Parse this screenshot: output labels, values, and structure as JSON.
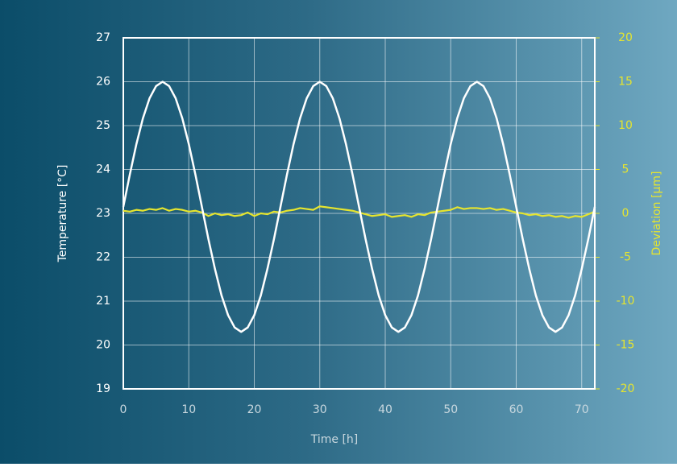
{
  "chart_data": {
    "type": "line",
    "x_label": "Time [h]",
    "y_label": "Temperature [°C]",
    "y2_label": "Deviation [µm]",
    "x": [
      0,
      1,
      2,
      3,
      4,
      5,
      6,
      7,
      8,
      9,
      10,
      11,
      12,
      13,
      14,
      15,
      16,
      17,
      18,
      19,
      20,
      21,
      22,
      23,
      24,
      25,
      26,
      27,
      28,
      29,
      30,
      31,
      32,
      33,
      34,
      35,
      36,
      37,
      38,
      39,
      40,
      41,
      42,
      43,
      44,
      45,
      46,
      47,
      48,
      49,
      50,
      51,
      52,
      53,
      54,
      55,
      56,
      57,
      58,
      59,
      60,
      61,
      62,
      63,
      64,
      65,
      66,
      67,
      68,
      69,
      70,
      71,
      72
    ],
    "series": [
      {
        "name": "Temperature",
        "color": "#ffffff",
        "values": [
          23.15,
          23.89,
          24.58,
          25.17,
          25.62,
          25.9,
          26.0,
          25.9,
          25.62,
          25.17,
          24.58,
          23.89,
          23.15,
          22.41,
          21.73,
          21.13,
          20.68,
          20.4,
          20.3,
          20.4,
          20.68,
          21.13,
          21.73,
          22.41,
          23.15,
          23.89,
          24.58,
          25.17,
          25.62,
          25.9,
          26.0,
          25.9,
          25.62,
          25.17,
          24.58,
          23.89,
          23.15,
          22.41,
          21.73,
          21.13,
          20.68,
          20.4,
          20.3,
          20.4,
          20.68,
          21.13,
          21.73,
          22.41,
          23.15,
          23.89,
          24.58,
          25.17,
          25.62,
          25.9,
          26.0,
          25.9,
          25.62,
          25.17,
          24.58,
          23.89,
          23.15,
          22.41,
          21.73,
          21.13,
          20.68,
          20.4,
          20.3,
          20.4,
          20.68,
          21.13,
          21.73,
          22.41,
          23.15
        ]
      },
      {
        "name": "Deviation",
        "color": "#e6e52e",
        "axis": "y2",
        "values": [
          0.3,
          0.2,
          0.4,
          0.3,
          0.5,
          0.4,
          0.6,
          0.3,
          0.5,
          0.4,
          0.2,
          0.3,
          0.1,
          -0.3,
          0,
          -0.2,
          -0.1,
          -0.3,
          -0.2,
          0.1,
          -0.3,
          0,
          -0.1,
          0.2,
          0.1,
          0.3,
          0.4,
          0.6,
          0.5,
          0.4,
          0.8,
          0.7,
          0.6,
          0.5,
          0.4,
          0.3,
          0.1,
          -0.1,
          -0.3,
          -0.2,
          -0.1,
          -0.4,
          -0.3,
          -0.2,
          -0.4,
          -0.1,
          -0.2,
          0.1,
          0.2,
          0.3,
          0.4,
          0.7,
          0.5,
          0.6,
          0.6,
          0.5,
          0.6,
          0.4,
          0.5,
          0.3,
          0.1,
          0,
          -0.2,
          -0.1,
          -0.3,
          -0.2,
          -0.4,
          -0.3,
          -0.5,
          -0.3,
          -0.4,
          -0.1,
          0.2
        ]
      }
    ],
    "xlim": [
      0,
      72
    ],
    "xticks": [
      0,
      10,
      20,
      30,
      40,
      50,
      60,
      70
    ],
    "ylim": [
      19,
      27
    ],
    "yticks": [
      19,
      20,
      21,
      22,
      23,
      24,
      25,
      26,
      27
    ],
    "y2lim": [
      -20,
      20
    ],
    "y2ticks": [
      -20,
      -15,
      -10,
      -5,
      0,
      5,
      10,
      15,
      20
    ],
    "grid": true
  }
}
